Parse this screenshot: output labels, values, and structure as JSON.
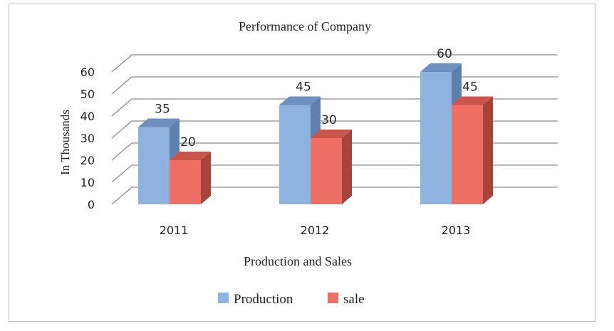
{
  "chart_data": {
    "type": "bar",
    "title": "Performance of Company",
    "xlabel": "Production and Sales",
    "ylabel": "In Thousands",
    "categories": [
      "2011",
      "2012",
      "2013"
    ],
    "series": [
      {
        "name": "Production",
        "values": [
          35,
          45,
          60
        ]
      },
      {
        "name": "sale",
        "values": [
          20,
          30,
          45
        ]
      }
    ],
    "ylim": [
      0,
      60
    ],
    "yticks": [
      "0",
      "10",
      "20",
      "30",
      "40",
      "50",
      "60"
    ],
    "grid": true,
    "legend": "bottom",
    "colors": {
      "production_front": "#8fb3e0",
      "production_side": "#5f7fae",
      "production_top": "#6f8fbf",
      "sale_front": "#ee6f63",
      "sale_side": "#a8433b",
      "sale_top": "#c9554c",
      "grid": "#8c8c8c"
    }
  }
}
